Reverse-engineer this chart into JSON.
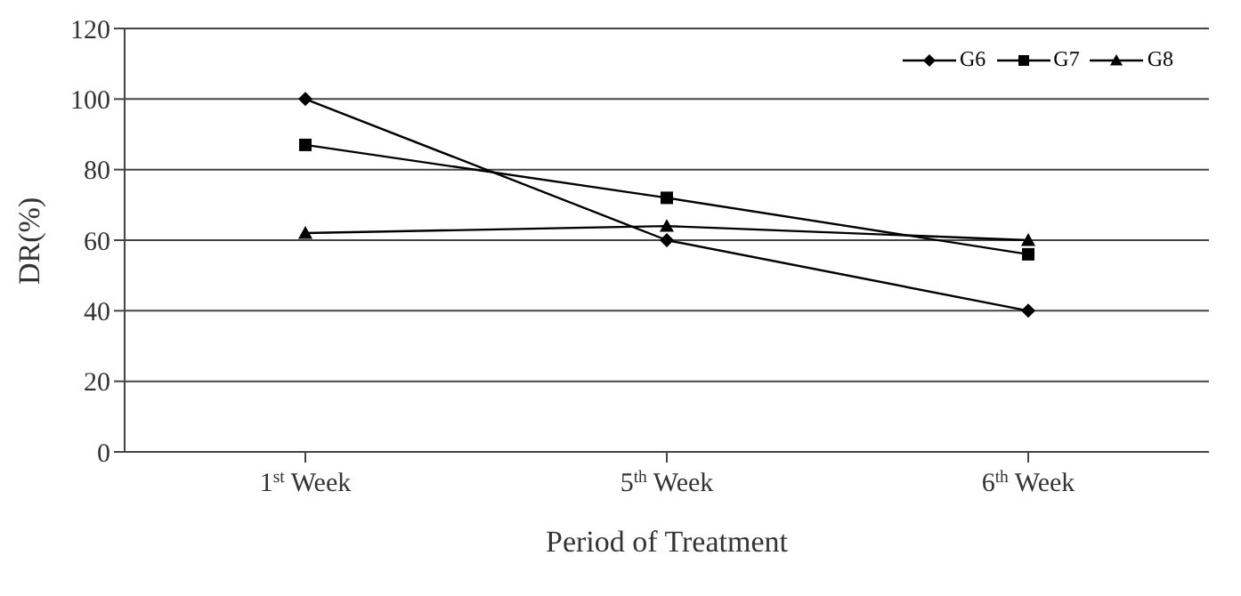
{
  "chart_data": {
    "type": "line",
    "xlabel": "Period of Treatment",
    "ylabel": "DR(%)",
    "categories": [
      "1$^{st}$ Week",
      "5$^{th}$ Week",
      "6$^{th}$ Week"
    ],
    "series": [
      {
        "name": "G6",
        "color": "#000000",
        "marker": "diamond",
        "values": [
          100,
          60,
          40
        ]
      },
      {
        "name": "G7",
        "color": "#000000",
        "marker": "square",
        "values": [
          87,
          72,
          56
        ]
      },
      {
        "name": "G8",
        "color": "#000000",
        "marker": "triangle",
        "values": [
          62,
          64,
          60
        ]
      }
    ],
    "ylim": [
      0,
      120
    ],
    "yticks": [
      0,
      20,
      40,
      60,
      80,
      100,
      120
    ],
    "grid": "y",
    "legend": "top right",
    "line_style": "solid"
  }
}
